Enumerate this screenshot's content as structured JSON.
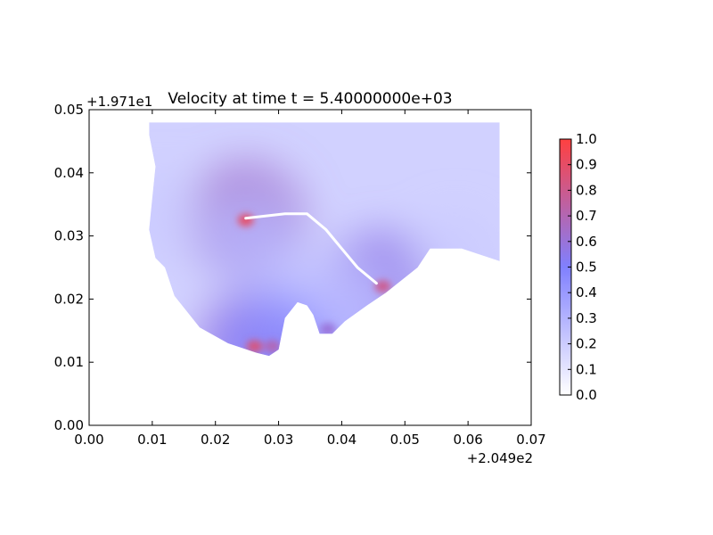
{
  "chart_data": {
    "type": "heatmap",
    "title": "Velocity at time t = 5.40000000e+03",
    "xlabel": "",
    "ylabel": "",
    "xlim": [
      0.0,
      0.07
    ],
    "ylim": [
      0.0,
      0.05
    ],
    "x_ticks": [
      "0.00",
      "0.01",
      "0.02",
      "0.03",
      "0.04",
      "0.05",
      "0.06",
      "0.07"
    ],
    "y_ticks": [
      "0.00",
      "0.01",
      "0.02",
      "0.03",
      "0.04",
      "0.05"
    ],
    "x_offset_label": "+2.049e2",
    "y_offset_label": "+1.971e1",
    "grid": false,
    "colorbar": {
      "min": 0.0,
      "max": 1.0,
      "ticks": [
        "0.0",
        "0.1",
        "0.2",
        "0.3",
        "0.4",
        "0.5",
        "0.6",
        "0.7",
        "0.8",
        "0.9",
        "1.0"
      ],
      "colors": [
        "#ffffff",
        "#8080ff",
        "#ff4040"
      ]
    },
    "domain_outline": [
      [
        0.0095,
        0.048
      ],
      [
        0.065,
        0.048
      ],
      [
        0.065,
        0.026
      ],
      [
        0.059,
        0.028
      ],
      [
        0.054,
        0.028
      ],
      [
        0.052,
        0.025
      ],
      [
        0.047,
        0.021
      ],
      [
        0.044,
        0.019
      ],
      [
        0.0405,
        0.0165
      ],
      [
        0.0385,
        0.0145
      ],
      [
        0.0365,
        0.0145
      ],
      [
        0.0355,
        0.0175
      ],
      [
        0.0345,
        0.019
      ],
      [
        0.033,
        0.0195
      ],
      [
        0.031,
        0.017
      ],
      [
        0.03,
        0.012
      ],
      [
        0.0285,
        0.011
      ],
      [
        0.0265,
        0.0115
      ],
      [
        0.022,
        0.013
      ],
      [
        0.0175,
        0.0155
      ],
      [
        0.0135,
        0.0205
      ],
      [
        0.012,
        0.025
      ],
      [
        0.0105,
        0.0265
      ],
      [
        0.0095,
        0.031
      ],
      [
        0.0105,
        0.041
      ],
      [
        0.0095,
        0.046
      ]
    ],
    "hotspots": [
      {
        "x": 0.0248,
        "y": 0.0325,
        "value": 0.9
      },
      {
        "x": 0.0262,
        "y": 0.0125,
        "value": 0.85
      },
      {
        "x": 0.0465,
        "y": 0.022,
        "value": 0.8
      },
      {
        "x": 0.0378,
        "y": 0.0152,
        "value": 0.6
      },
      {
        "x": 0.0255,
        "y": 0.029,
        "value": 0.4
      },
      {
        "x": 0.0325,
        "y": 0.0215,
        "value": 0.35
      },
      {
        "x": 0.058,
        "y": 0.027,
        "value": 0.3
      },
      {
        "x": 0.041,
        "y": 0.0185,
        "value": 0.35
      },
      {
        "x": 0.029,
        "y": 0.0125,
        "value": 0.7
      },
      {
        "x": 0.0115,
        "y": 0.033,
        "value": 0.3
      }
    ],
    "streak": [
      [
        0.0248,
        0.0328
      ],
      [
        0.031,
        0.0335
      ],
      [
        0.0345,
        0.0335
      ],
      [
        0.0375,
        0.031
      ],
      [
        0.04,
        0.028
      ],
      [
        0.0425,
        0.025
      ],
      [
        0.0455,
        0.0225
      ]
    ]
  }
}
